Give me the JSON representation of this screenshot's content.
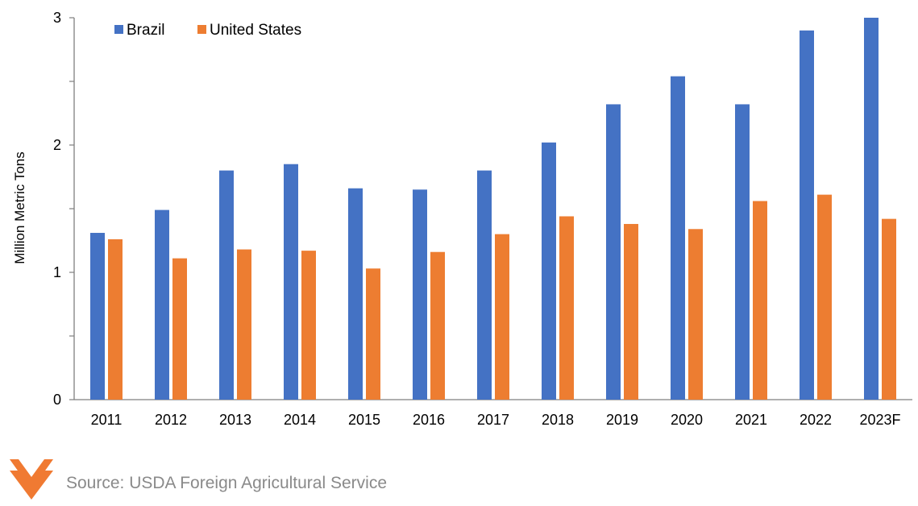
{
  "chart_data": {
    "type": "bar",
    "categories": [
      "2011",
      "2012",
      "2013",
      "2014",
      "2015",
      "2016",
      "2017",
      "2018",
      "2019",
      "2020",
      "2021",
      "2022",
      "2023F"
    ],
    "series": [
      {
        "name": "Brazil",
        "color": "#4472c4",
        "values": [
          1.31,
          1.49,
          1.8,
          1.85,
          1.66,
          1.65,
          1.8,
          2.02,
          2.32,
          2.54,
          2.32,
          2.9,
          3.0
        ]
      },
      {
        "name": "United States",
        "color": "#ed7d31",
        "values": [
          1.26,
          1.11,
          1.18,
          1.17,
          1.03,
          1.16,
          1.3,
          1.44,
          1.38,
          1.34,
          1.56,
          1.61,
          1.42
        ]
      }
    ],
    "ylabel": "Million Metric Tons",
    "ylim": [
      0,
      3
    ],
    "yticks": [
      "0",
      "1",
      "2",
      "3"
    ],
    "legend_position": "top-left",
    "grid": false
  },
  "footer": {
    "source": "Source: USDA Foreign Agricultural Service",
    "logo_icon": "chevron-logo-icon",
    "logo_color": "#f07a32"
  }
}
